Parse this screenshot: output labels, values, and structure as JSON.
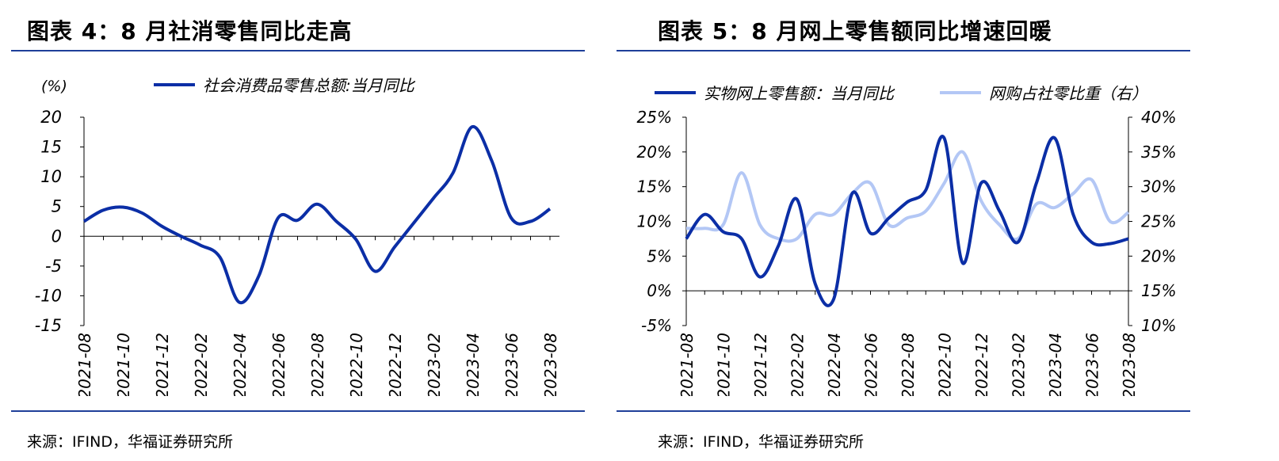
{
  "colors": {
    "rule": "#1f3f99",
    "series_dark": "#0b2ea6",
    "series_light": "#b3c7f5"
  },
  "left": {
    "title": "图表 4：8 月社消零售同比走高",
    "source": "来源：IFIND，华福证券研究所",
    "chart_data": {
      "type": "line",
      "unit_label": "(%)",
      "x": [
        "2021-08",
        "2021-09",
        "2021-10",
        "2021-11",
        "2021-12",
        "2022-01",
        "2022-02",
        "2022-03",
        "2022-04",
        "2022-05",
        "2022-06",
        "2022-07",
        "2022-08",
        "2022-09",
        "2022-10",
        "2022-11",
        "2022-12",
        "2023-01",
        "2023-02",
        "2023-03",
        "2023-04",
        "2023-05",
        "2023-06",
        "2023-07",
        "2023-08"
      ],
      "xticks": [
        "2021-08",
        "2021-10",
        "2021-12",
        "2022-02",
        "2022-04",
        "2022-06",
        "2022-08",
        "2022-10",
        "2022-12",
        "2023-02",
        "2023-04",
        "2023-06",
        "2023-08"
      ],
      "yticks": [
        "20",
        "15",
        "10",
        "5",
        "0",
        "-5",
        "-10",
        "-15"
      ],
      "ylim": [
        -15,
        20
      ],
      "legend_position": "top",
      "series": [
        {
          "name": "社会消费品零售总额:当月同比",
          "values": [
            2.5,
            4.4,
            4.9,
            3.9,
            1.7,
            0.0,
            -1.5,
            -3.5,
            -11.1,
            -6.7,
            3.1,
            2.7,
            5.4,
            2.5,
            -0.5,
            -5.9,
            -1.8,
            2.3,
            6.4,
            10.6,
            18.4,
            12.7,
            3.1,
            2.5,
            4.6
          ]
        }
      ]
    }
  },
  "right": {
    "title": "图表 5：8 月网上零售额同比增速回暖",
    "source": "来源：IFIND，华福证券研究所",
    "chart_data": {
      "type": "line",
      "x": [
        "2021-08",
        "2021-09",
        "2021-10",
        "2021-11",
        "2021-12",
        "2022-01",
        "2022-02",
        "2022-03",
        "2022-04",
        "2022-05",
        "2022-06",
        "2022-07",
        "2022-08",
        "2022-09",
        "2022-10",
        "2022-11",
        "2022-12",
        "2023-01",
        "2023-02",
        "2023-03",
        "2023-04",
        "2023-05",
        "2023-06",
        "2023-07",
        "2023-08"
      ],
      "xticks": [
        "2021-08",
        "2021-10",
        "2021-12",
        "2022-02",
        "2022-04",
        "2022-06",
        "2022-08",
        "2022-10",
        "2022-12",
        "2023-02",
        "2023-04",
        "2023-06",
        "2023-08"
      ],
      "yticks_left": [
        "25%",
        "20%",
        "15%",
        "10%",
        "5%",
        "0%",
        "-5%"
      ],
      "yticks_right": [
        "40%",
        "35%",
        "30%",
        "25%",
        "20%",
        "15%",
        "10%"
      ],
      "ylim_left": [
        -5,
        25
      ],
      "ylim_right": [
        10,
        40
      ],
      "legend_position": "top",
      "series": [
        {
          "name": "实物网上零售额：当月同比",
          "axis": "left",
          "values": [
            7.5,
            11.0,
            8.5,
            7.5,
            2.0,
            6.5,
            13.2,
            1.0,
            -1.2,
            14.0,
            8.3,
            10.5,
            12.8,
            14.5,
            22.0,
            4.0,
            15.5,
            11.5,
            7.0,
            15.5,
            22.0,
            11.0,
            7.0,
            6.8,
            7.5
          ]
        },
        {
          "name": "网购占社零比重（右）",
          "axis": "right",
          "values": [
            24.0,
            24.0,
            24.5,
            32.0,
            24.5,
            22.5,
            22.5,
            26.0,
            26.0,
            29.0,
            30.5,
            24.5,
            25.5,
            26.5,
            30.5,
            35.0,
            28.0,
            24.5,
            22.5,
            27.5,
            27.0,
            29.0,
            31.0,
            25.0,
            26.3
          ]
        }
      ]
    }
  }
}
